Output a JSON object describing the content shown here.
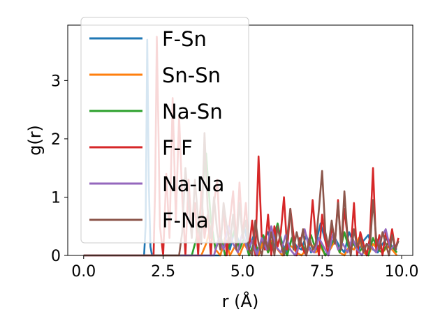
{
  "chart_data": {
    "type": "line",
    "xlabel": "r (Å)",
    "ylabel": "g(r)",
    "xlim": [
      -0.5,
      10.35
    ],
    "ylim": [
      0,
      3.95
    ],
    "xticks": [
      0.0,
      2.5,
      5.0,
      7.5,
      10.0
    ],
    "xtick_labels": [
      "0.0",
      "2.5",
      "5.0",
      "7.5",
      "10.0"
    ],
    "yticks": [
      0,
      1,
      2,
      3
    ],
    "ytick_labels": [
      "0",
      "1",
      "2",
      "3"
    ],
    "grid": false,
    "legend_position": "upper-left",
    "series": [
      {
        "name": "F-Sn",
        "color": "#1f77b4",
        "x": [
          0.0,
          1.9,
          1.95,
          2.0,
          2.05,
          2.1,
          2.15,
          2.2,
          4.3,
          4.45,
          4.6,
          4.75,
          4.9,
          5.05,
          5.2,
          5.35,
          5.5,
          5.65,
          5.8,
          5.95,
          6.1,
          6.25,
          6.4,
          6.55,
          6.7,
          6.85,
          7.0,
          7.15,
          7.3,
          7.45,
          7.6,
          7.75,
          7.9,
          8.05,
          8.2,
          8.35,
          8.5,
          8.65,
          8.8,
          8.95,
          9.1,
          9.25,
          9.4,
          9.55,
          9.7,
          9.85
        ],
        "y": [
          0.0,
          0.0,
          0.5,
          3.7,
          1.2,
          0.15,
          0.0,
          0.0,
          0.0,
          0.3,
          0.1,
          0.45,
          0.2,
          0.5,
          0.1,
          0.35,
          0.0,
          0.25,
          0.4,
          0.1,
          0.5,
          0.2,
          0.05,
          0.3,
          0.15,
          0.1,
          0.35,
          0.05,
          0.2,
          0.55,
          0.25,
          0.1,
          0.3,
          0.15,
          0.05,
          0.4,
          0.2,
          0.1,
          0.25,
          0.35,
          0.1,
          0.05,
          0.2,
          0.3,
          0.15,
          0.1
        ]
      },
      {
        "name": "Sn-Sn",
        "color": "#ff7f0e",
        "x": [
          0.0,
          3.7,
          3.85,
          4.0,
          4.15,
          4.3,
          4.45,
          4.6,
          4.75,
          4.9,
          5.05,
          5.2,
          5.35,
          5.5,
          5.65,
          5.8,
          5.95,
          6.1,
          6.25,
          6.4,
          6.55,
          6.7,
          6.85,
          7.0,
          7.15,
          7.3,
          7.45,
          7.6,
          7.75,
          7.9,
          8.05,
          8.2,
          8.35,
          8.5,
          8.65,
          8.8,
          8.95,
          9.1,
          9.25,
          9.4,
          9.55,
          9.7,
          9.85
        ],
        "y": [
          0.0,
          0.0,
          0.2,
          0.5,
          0.1,
          0.0,
          0.3,
          0.0,
          0.15,
          0.0,
          0.2,
          0.05,
          0.1,
          0.0,
          0.25,
          0.05,
          0.3,
          0.1,
          0.0,
          0.2,
          0.15,
          0.05,
          0.0,
          0.1,
          0.2,
          0.05,
          0.15,
          0.0,
          0.1,
          0.25,
          0.05,
          0.0,
          0.15,
          0.1,
          0.3,
          0.05,
          0.0,
          0.2,
          0.1,
          0.05,
          0.15,
          0.1,
          0.0
        ]
      },
      {
        "name": "Na-Sn",
        "color": "#2ca02c",
        "x": [
          0.0,
          3.4,
          3.55,
          3.7,
          3.85,
          4.0,
          4.15,
          4.3,
          4.45,
          4.6,
          4.75,
          4.9,
          5.05,
          5.2,
          5.35,
          5.5,
          5.65,
          5.8,
          5.95,
          6.1,
          6.25,
          6.4,
          6.55,
          6.7,
          6.85,
          7.0,
          7.15,
          7.3,
          7.45,
          7.6,
          7.75,
          7.9,
          8.05,
          8.2,
          8.35,
          8.5,
          8.65,
          8.8,
          8.95,
          9.1,
          9.25,
          9.4,
          9.55,
          9.7,
          9.85
        ],
        "y": [
          0.0,
          0.0,
          0.3,
          0.9,
          1.75,
          0.6,
          0.1,
          0.35,
          0.0,
          0.2,
          0.45,
          0.1,
          0.3,
          0.0,
          0.2,
          0.1,
          0.35,
          0.05,
          0.25,
          0.55,
          0.15,
          0.0,
          0.3,
          0.1,
          0.2,
          0.05,
          0.35,
          0.1,
          0.2,
          0.0,
          0.15,
          0.3,
          0.05,
          0.4,
          0.1,
          0.2,
          0.05,
          0.15,
          0.0,
          0.3,
          0.1,
          0.05,
          0.2,
          0.15,
          0.05
        ]
      },
      {
        "name": "F-F",
        "color": "#d62728",
        "x": [
          0.0,
          2.2,
          2.25,
          2.3,
          2.35,
          2.4,
          2.5,
          2.6,
          2.7,
          2.8,
          2.9,
          3.0,
          3.1,
          3.2,
          3.3,
          3.4,
          3.5,
          3.6,
          3.7,
          3.8,
          3.9,
          4.0,
          4.1,
          4.2,
          4.3,
          4.4,
          4.5,
          4.6,
          4.7,
          4.8,
          4.9,
          5.0,
          5.1,
          5.2,
          5.3,
          5.4,
          5.5,
          5.6,
          5.7,
          5.8,
          5.9,
          6.0,
          6.1,
          6.2,
          6.3,
          6.4,
          6.5,
          6.6,
          6.7,
          6.8,
          6.9,
          7.0,
          7.1,
          7.2,
          7.3,
          7.4,
          7.5,
          7.6,
          7.7,
          7.8,
          7.9,
          8.0,
          8.1,
          8.2,
          8.3,
          8.4,
          8.5,
          8.6,
          8.7,
          8.8,
          8.9,
          9.0,
          9.1,
          9.2,
          9.3,
          9.4,
          9.5,
          9.6,
          9.7,
          9.8,
          9.9
        ],
        "y": [
          0.0,
          0.0,
          1.2,
          3.75,
          2.2,
          0.5,
          0.0,
          1.4,
          0.3,
          2.7,
          0.6,
          2.4,
          1.0,
          0.0,
          1.3,
          0.4,
          0.9,
          0.0,
          1.1,
          0.3,
          0.7,
          0.0,
          0.9,
          1.3,
          0.2,
          0.8,
          0.0,
          0.6,
          1.1,
          0.2,
          1.25,
          0.3,
          0.9,
          0.1,
          0.6,
          0.0,
          1.7,
          0.3,
          0.1,
          0.7,
          0.0,
          0.5,
          0.15,
          0.4,
          1.0,
          0.1,
          0.8,
          0.35,
          0.0,
          0.3,
          0.1,
          0.0,
          0.2,
          0.95,
          0.3,
          0.0,
          0.7,
          0.25,
          0.0,
          0.5,
          0.2,
          0.95,
          0.1,
          0.8,
          0.3,
          0.1,
          0.9,
          0.0,
          0.4,
          0.2,
          0.0,
          0.3,
          1.5,
          0.1,
          0.35,
          0.0,
          0.4,
          0.15,
          0.45,
          0.1,
          0.3
        ]
      },
      {
        "name": "Na-Na",
        "color": "#9467bd",
        "x": [
          0.0,
          4.1,
          4.25,
          4.4,
          4.55,
          4.7,
          4.85,
          5.0,
          5.15,
          5.3,
          5.45,
          5.6,
          5.75,
          5.9,
          6.05,
          6.2,
          6.35,
          6.5,
          6.65,
          6.8,
          6.95,
          7.1,
          7.25,
          7.4,
          7.55,
          7.7,
          7.85,
          8.0,
          8.15,
          8.3,
          8.45,
          8.6,
          8.75,
          8.9,
          9.05,
          9.2,
          9.35,
          9.5,
          9.65,
          9.8
        ],
        "y": [
          0.0,
          0.0,
          0.3,
          0.1,
          0.5,
          0.2,
          0.05,
          0.4,
          0.1,
          0.25,
          0.0,
          0.3,
          0.1,
          0.5,
          0.15,
          0.05,
          0.35,
          0.1,
          0.0,
          0.2,
          0.45,
          0.1,
          0.05,
          0.3,
          0.15,
          0.0,
          0.4,
          0.1,
          0.2,
          0.05,
          0.3,
          0.1,
          0.0,
          0.2,
          0.15,
          0.05,
          0.3,
          0.45,
          0.1,
          0.2
        ]
      },
      {
        "name": "F-Na",
        "color": "#8c564b",
        "x": [
          0.0,
          3.0,
          3.1,
          3.2,
          3.3,
          3.4,
          3.5,
          3.6,
          3.7,
          3.8,
          3.9,
          4.0,
          4.1,
          4.2,
          4.3,
          4.4,
          4.5,
          4.6,
          4.7,
          4.8,
          4.9,
          5.0,
          5.1,
          5.2,
          5.3,
          5.4,
          5.5,
          5.6,
          5.7,
          5.8,
          5.9,
          6.0,
          6.1,
          6.2,
          6.3,
          6.4,
          6.5,
          6.6,
          6.7,
          6.8,
          6.9,
          7.0,
          7.1,
          7.2,
          7.3,
          7.4,
          7.5,
          7.6,
          7.7,
          7.8,
          7.9,
          8.0,
          8.1,
          8.2,
          8.3,
          8.4,
          8.5,
          8.6,
          8.7,
          8.8,
          8.9,
          9.0,
          9.1,
          9.2,
          9.3,
          9.4,
          9.5,
          9.6,
          9.7,
          9.8,
          9.9
        ],
        "y": [
          0.0,
          0.0,
          0.4,
          1.5,
          0.9,
          0.3,
          1.3,
          0.6,
          0.2,
          2.1,
          0.8,
          0.3,
          1.0,
          0.4,
          0.1,
          0.9,
          0.5,
          0.2,
          0.7,
          0.1,
          0.9,
          0.3,
          0.6,
          0.1,
          0.0,
          0.6,
          0.2,
          0.0,
          0.3,
          0.1,
          0.4,
          0.0,
          0.5,
          0.2,
          0.0,
          0.3,
          0.8,
          0.1,
          0.4,
          0.15,
          0.45,
          0.0,
          0.3,
          0.1,
          0.2,
          0.8,
          1.45,
          0.4,
          0.15,
          0.6,
          0.2,
          0.9,
          0.1,
          1.1,
          0.3,
          0.0,
          0.45,
          0.15,
          0.3,
          0.05,
          0.2,
          0.1,
          0.95,
          0.3,
          0.1,
          0.4,
          0.2,
          0.0,
          0.35,
          0.1,
          0.25
        ]
      }
    ]
  }
}
